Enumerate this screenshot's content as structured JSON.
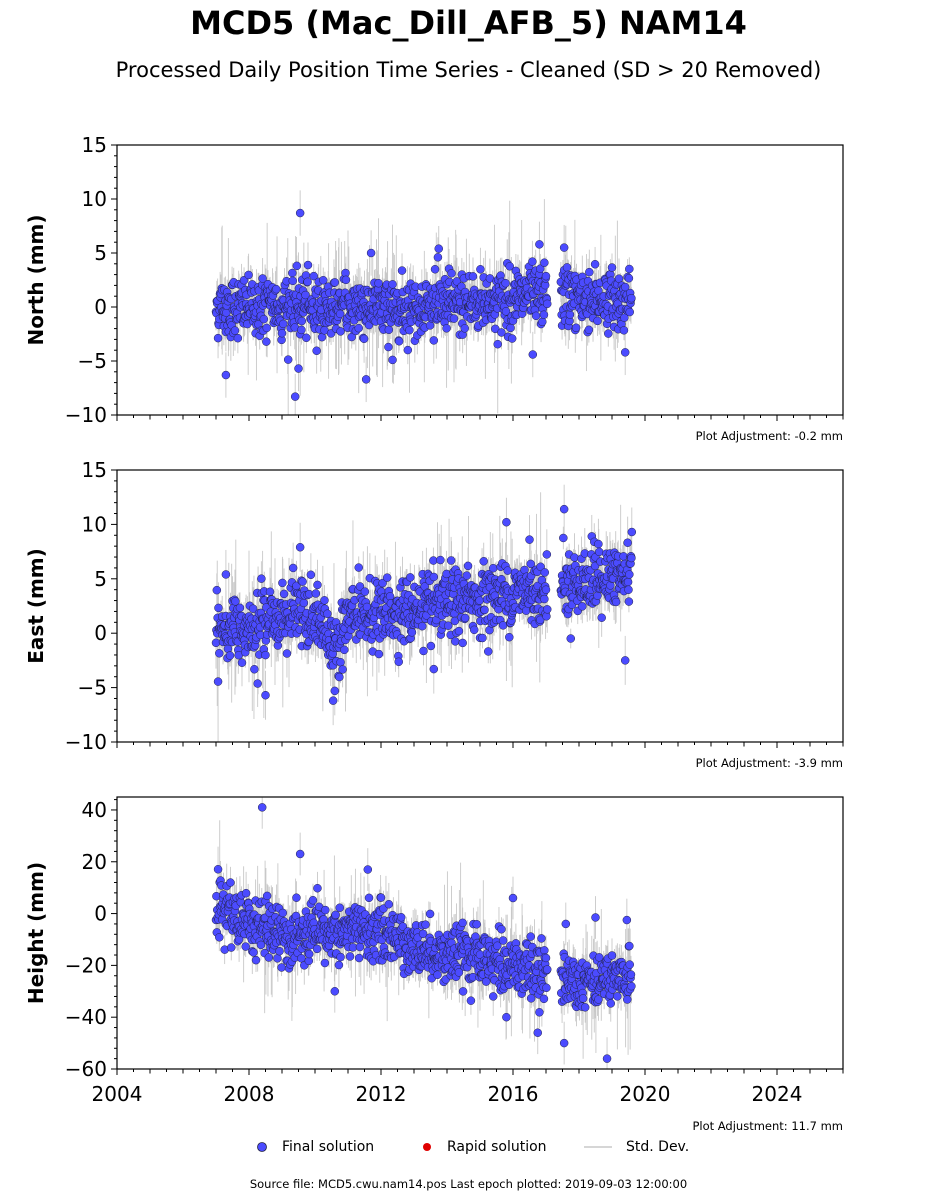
{
  "header": {
    "title": "MCD5 (Mac_Dill_AFB_5) NAM14",
    "subtitle": "Processed Daily Position Time Series - Cleaned (SD > 20 Removed)"
  },
  "legend": {
    "final": "Final solution",
    "rapid": "Rapid solution",
    "std": "Std. Dev."
  },
  "footer": {
    "text": "Source file: MCD5.cwu.nam14.pos  Last epoch plotted: 2019-09-03 12:00:00"
  },
  "colors": {
    "final": "#4b4bff",
    "rapid": "#e00000",
    "std": "#c8c8c8",
    "marker_edge": "#222244"
  },
  "chart_data": [
    {
      "type": "scatter",
      "ylabel": "North (mm)",
      "ylim": [
        -10,
        15
      ],
      "yticks": [
        -10,
        -5,
        0,
        5,
        10,
        15
      ],
      "xlim": [
        2004,
        2026
      ],
      "adjustment": "Plot Adjustment: -0.2 mm",
      "segments": [
        {
          "x": 2007.0,
          "y": 0.0
        },
        {
          "x": 2009.0,
          "y": 0.0
        },
        {
          "x": 2011.0,
          "y": 0.0
        },
        {
          "x": 2013.0,
          "y": 0.0
        },
        {
          "x": 2015.0,
          "y": 0.5
        },
        {
          "x": 2017.0,
          "y": 1.0
        },
        {
          "x": 2017.5,
          "y": 1.0
        },
        {
          "x": 2019.6,
          "y": 0.5
        }
      ],
      "gaps": [
        [
          2017.05,
          2017.45
        ]
      ],
      "noise": 1.4,
      "outliers": [
        {
          "x": 2009.55,
          "y": 8.7
        },
        {
          "x": 2009.4,
          "y": -8.3
        },
        {
          "x": 2007.3,
          "y": -6.3
        },
        {
          "x": 2011.55,
          "y": -6.7
        },
        {
          "x": 2011.7,
          "y": 5.0
        },
        {
          "x": 2013.75,
          "y": 5.4
        },
        {
          "x": 2016.8,
          "y": 5.8
        },
        {
          "x": 2017.55,
          "y": 5.5
        },
        {
          "x": 2009.5,
          "y": -5.7
        },
        {
          "x": 2012.35,
          "y": -4.9
        },
        {
          "x": 2016.6,
          "y": -4.4
        },
        {
          "x": 2019.4,
          "y": -4.2
        }
      ]
    },
    {
      "type": "scatter",
      "ylabel": "East (mm)",
      "ylim": [
        -10,
        15
      ],
      "yticks": [
        -10,
        -5,
        0,
        5,
        10,
        15
      ],
      "xlim": [
        2004,
        2026
      ],
      "adjustment": "Plot Adjustment: -3.9 mm",
      "segments": [
        {
          "x": 2007.0,
          "y": 0.0
        },
        {
          "x": 2008.0,
          "y": 0.8
        },
        {
          "x": 2009.5,
          "y": 2.0
        },
        {
          "x": 2010.3,
          "y": 0.5
        },
        {
          "x": 2010.5,
          "y": -1.5
        },
        {
          "x": 2011.0,
          "y": 1.5
        },
        {
          "x": 2013.0,
          "y": 2.0
        },
        {
          "x": 2014.5,
          "y": 3.0
        },
        {
          "x": 2017.0,
          "y": 4.0
        },
        {
          "x": 2017.5,
          "y": 4.5
        },
        {
          "x": 2019.6,
          "y": 5.2
        }
      ],
      "gaps": [
        [
          2017.05,
          2017.45
        ]
      ],
      "noise": 1.5,
      "outliers": [
        {
          "x": 2017.55,
          "y": 11.4
        },
        {
          "x": 2015.8,
          "y": 10.2
        },
        {
          "x": 2019.6,
          "y": 9.3
        },
        {
          "x": 2009.55,
          "y": 7.9
        },
        {
          "x": 2016.5,
          "y": 8.6
        },
        {
          "x": 2007.3,
          "y": 5.4
        },
        {
          "x": 2008.5,
          "y": -5.7
        },
        {
          "x": 2010.55,
          "y": -6.2
        },
        {
          "x": 2010.6,
          "y": -5.3
        },
        {
          "x": 2019.4,
          "y": -2.5
        },
        {
          "x": 2013.6,
          "y": -3.3
        }
      ]
    },
    {
      "type": "scatter",
      "ylabel": "Height (mm)",
      "ylim": [
        -60,
        45
      ],
      "yticks": [
        -60,
        -40,
        -20,
        0,
        20,
        40
      ],
      "xlim": [
        2004,
        2026
      ],
      "xticks": [
        2004,
        2008,
        2012,
        2016,
        2020,
        2024
      ],
      "adjustment": "Plot Adjustment: 11.7 mm",
      "segments": [
        {
          "x": 2007.0,
          "y": 3.0
        },
        {
          "x": 2008.0,
          "y": -3.0
        },
        {
          "x": 2009.0,
          "y": -10.0
        },
        {
          "x": 2011.0,
          "y": -7.0
        },
        {
          "x": 2012.0,
          "y": -7.0
        },
        {
          "x": 2013.0,
          "y": -13.0
        },
        {
          "x": 2014.5,
          "y": -17.0
        },
        {
          "x": 2016.0,
          "y": -20.0
        },
        {
          "x": 2017.0,
          "y": -23.0
        },
        {
          "x": 2017.5,
          "y": -25.0
        },
        {
          "x": 2019.6,
          "y": -25.0
        }
      ],
      "gaps": [
        [
          2017.05,
          2017.45
        ]
      ],
      "noise": 5.5,
      "outliers": [
        {
          "x": 2008.4,
          "y": 41.0
        },
        {
          "x": 2009.55,
          "y": 23.0
        },
        {
          "x": 2011.6,
          "y": 17.0
        },
        {
          "x": 2016.0,
          "y": 6.0
        },
        {
          "x": 2016.75,
          "y": -46.0
        },
        {
          "x": 2017.55,
          "y": -50.0
        },
        {
          "x": 2018.85,
          "y": -56.0
        },
        {
          "x": 2015.8,
          "y": -40.0
        },
        {
          "x": 2019.45,
          "y": -2.5
        },
        {
          "x": 2018.5,
          "y": -1.5
        },
        {
          "x": 2017.6,
          "y": -4.0
        },
        {
          "x": 2010.6,
          "y": -30.0
        }
      ]
    }
  ]
}
